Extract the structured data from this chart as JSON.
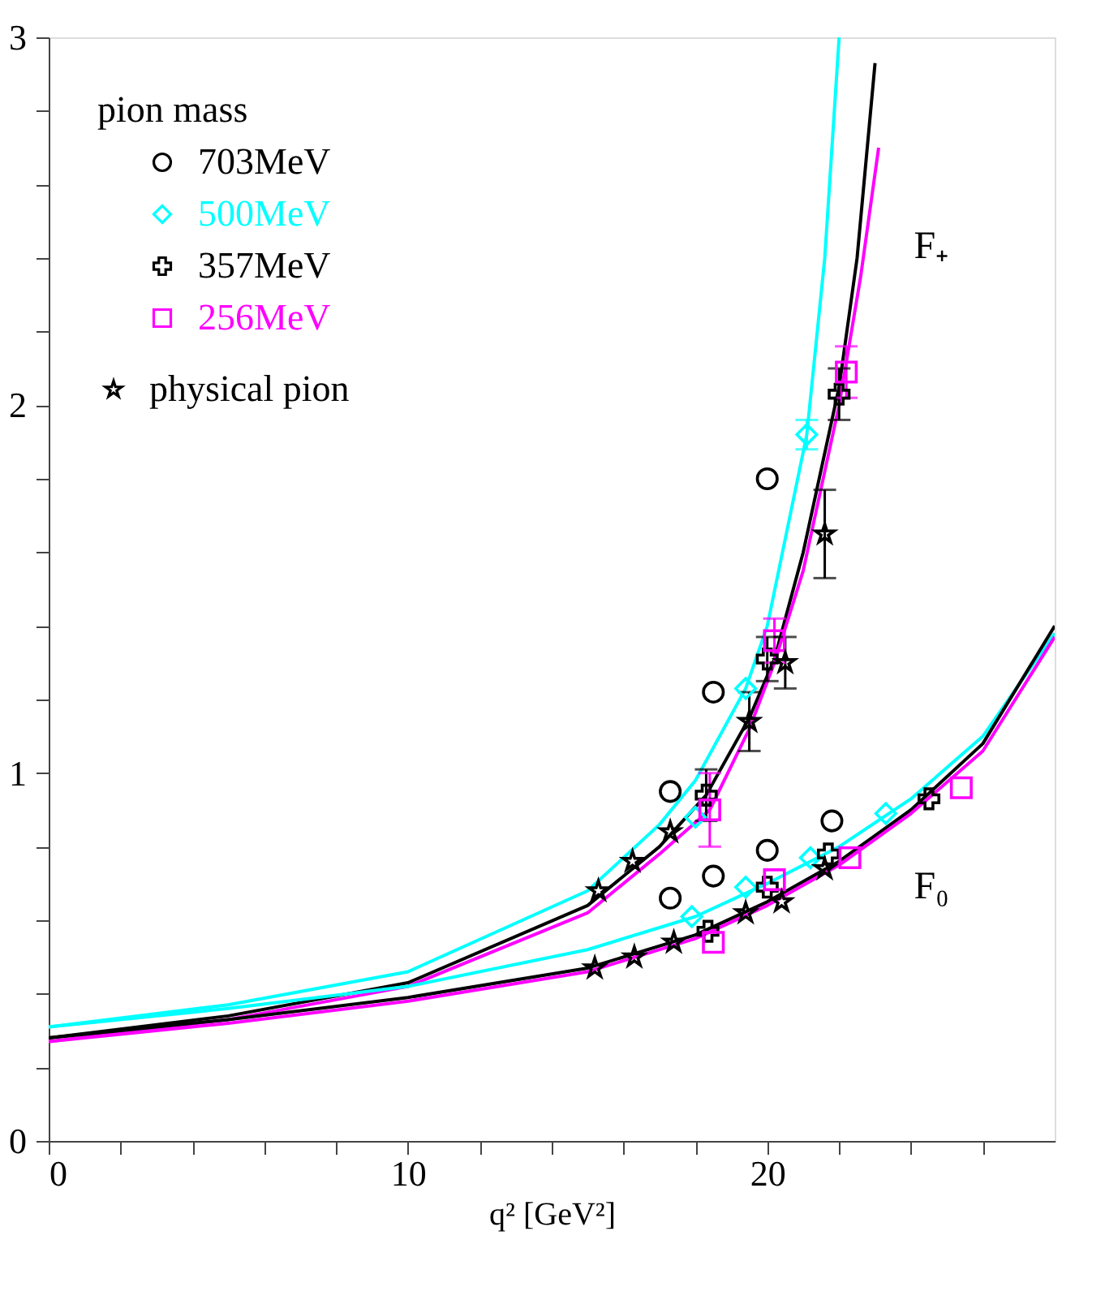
{
  "chart_data": {
    "type": "scatter",
    "xlabel": "q² [GeV²]",
    "legend_title": "pion mass",
    "legend": "top left",
    "grid": false,
    "xlim": [
      0,
      28
    ],
    "ylim": [
      0,
      3
    ],
    "xticks": [
      0,
      {
        "value": 2,
        "label": null
      },
      {
        "value": 4,
        "label": null
      },
      {
        "value": 6,
        "label": null
      },
      {
        "value": 8,
        "label": null
      },
      10,
      {
        "value": 12,
        "label": null
      },
      {
        "value": 14,
        "label": null
      },
      {
        "value": 16,
        "label": null
      },
      {
        "value": 18,
        "label": null
      },
      20,
      {
        "value": 22,
        "label": null
      },
      {
        "value": 24,
        "label": null
      },
      {
        "value": 26,
        "label": null
      }
    ],
    "yticks": [
      0,
      {
        "value": 0.2,
        "label": null
      },
      {
        "value": 0.4,
        "label": null
      },
      {
        "value": 0.6,
        "label": null
      },
      {
        "value": 0.8,
        "label": null
      },
      1,
      {
        "value": 1.2,
        "label": null
      },
      {
        "value": 1.4,
        "label": null
      },
      {
        "value": 1.6,
        "label": null
      },
      {
        "value": 1.8,
        "label": null
      },
      2,
      {
        "value": 2.2,
        "label": null
      },
      {
        "value": 2.4,
        "label": null
      },
      {
        "value": 2.6,
        "label": null
      },
      {
        "value": 2.8,
        "label": null
      },
      3
    ],
    "series": [
      {
        "name": "703MeV",
        "marker": "circle",
        "color": "#000000",
        "x": [
          17.3,
          18.5,
          20.0,
          17.3,
          18.5,
          20.0,
          21.8
        ],
        "values": [
          0.95,
          1.22,
          1.8,
          0.66,
          0.72,
          0.79,
          0.87
        ],
        "errors": [
          null,
          null,
          null,
          null,
          null,
          null,
          null
        ]
      },
      {
        "name": "500MeV",
        "marker": "diamond",
        "color": "#00ffff",
        "x": [
          18.0,
          19.4,
          21.1,
          17.9,
          19.4,
          21.2,
          23.3
        ],
        "values": [
          0.88,
          1.23,
          1.92,
          0.61,
          0.69,
          0.77,
          0.89
        ],
        "errors": [
          null,
          null,
          0.04,
          null,
          null,
          null,
          null
        ]
      },
      {
        "name": "357MeV",
        "marker": "cross",
        "color": "#000000",
        "x": [
          18.3,
          20.0,
          22.0,
          18.35,
          20.0,
          21.7,
          24.5
        ],
        "values": [
          0.94,
          1.31,
          2.03,
          0.57,
          0.69,
          0.78,
          0.93
        ],
        "errors": [
          0.07,
          0.06,
          0.07,
          null,
          null,
          null,
          null
        ]
      },
      {
        "name": "256MeV",
        "marker": "square",
        "color": "#ff00ff",
        "x": [
          18.4,
          20.2,
          22.2,
          18.5,
          20.2,
          22.3,
          25.4
        ],
        "values": [
          0.9,
          1.36,
          2.09,
          0.54,
          0.71,
          0.77,
          0.96
        ],
        "errors": [
          0.1,
          0.06,
          0.07,
          null,
          null,
          null,
          null
        ]
      },
      {
        "name": "physical pion",
        "marker": "star",
        "color": "#000000",
        "x": [
          15.3,
          16.25,
          17.3,
          19.5,
          20.5,
          21.6,
          15.2,
          16.3,
          17.4,
          19.4,
          20.4,
          21.6
        ],
        "values": [
          0.68,
          0.76,
          0.84,
          1.14,
          1.3,
          1.65,
          0.47,
          0.5,
          0.54,
          0.62,
          0.65,
          0.74
        ],
        "errors": [
          null,
          null,
          null,
          0.08,
          0.07,
          0.12,
          null,
          null,
          null,
          null,
          null,
          null
        ]
      },
      {
        "type": "line",
        "color": "#00ffff",
        "x": [
          0,
          5,
          10,
          15,
          17,
          18,
          19.4,
          20,
          21.1,
          21.6,
          22
        ],
        "values": [
          0.31,
          0.37,
          0.46,
          0.68,
          0.86,
          0.98,
          1.23,
          1.4,
          1.92,
          2.4,
          3.0
        ]
      },
      {
        "type": "line",
        "color": "#000000",
        "x": [
          0,
          5,
          10,
          15,
          17,
          18.3,
          19.5,
          20.2,
          21,
          22,
          22.5,
          23
        ],
        "values": [
          0.28,
          0.34,
          0.43,
          0.64,
          0.8,
          0.94,
          1.15,
          1.31,
          1.6,
          2.05,
          2.4,
          2.93
        ]
      },
      {
        "type": "line",
        "color": "#ff00ff",
        "x": [
          0,
          5,
          10,
          15,
          17,
          18.4,
          19.5,
          20.2,
          21,
          22,
          22.6,
          23.1
        ],
        "values": [
          0.27,
          0.33,
          0.42,
          0.62,
          0.78,
          0.9,
          1.12,
          1.3,
          1.55,
          2.0,
          2.35,
          2.7
        ]
      },
      {
        "type": "line",
        "color": "#00ffff",
        "x": [
          0,
          5,
          10,
          15,
          18,
          20,
          22,
          24,
          26,
          28
        ],
        "values": [
          0.31,
          0.36,
          0.42,
          0.52,
          0.61,
          0.7,
          0.8,
          0.93,
          1.1,
          1.38
        ]
      },
      {
        "type": "line",
        "color": "#000000",
        "x": [
          0,
          5,
          10,
          15,
          18,
          20,
          22,
          24,
          26,
          28
        ],
        "values": [
          0.28,
          0.33,
          0.39,
          0.47,
          0.56,
          0.65,
          0.76,
          0.9,
          1.08,
          1.4
        ]
      },
      {
        "type": "line",
        "color": "#ff00ff",
        "x": [
          0,
          5,
          10,
          15,
          18,
          20,
          22,
          24,
          26,
          28
        ],
        "values": [
          0.27,
          0.32,
          0.38,
          0.46,
          0.55,
          0.64,
          0.75,
          0.89,
          1.06,
          1.37
        ]
      }
    ],
    "annotations": [
      "F₊",
      "F₀"
    ]
  }
}
